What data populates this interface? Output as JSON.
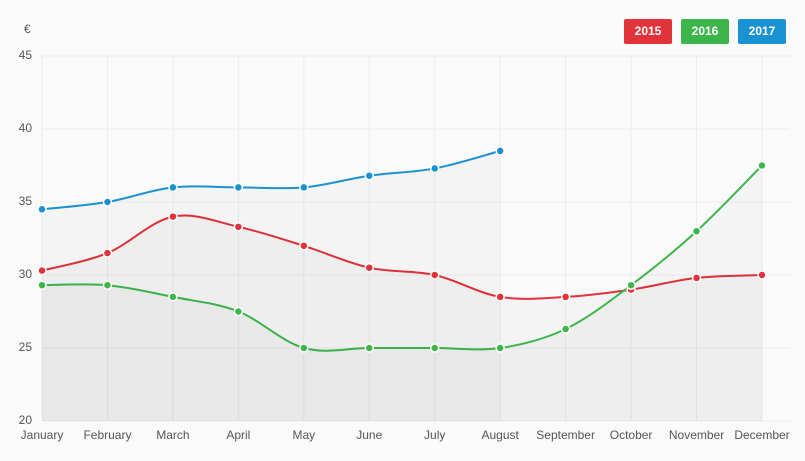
{
  "chart_data": {
    "type": "line",
    "ylabel": "€",
    "categories": [
      "January",
      "February",
      "March",
      "April",
      "May",
      "June",
      "July",
      "August",
      "September",
      "October",
      "November",
      "December"
    ],
    "series": [
      {
        "name": "2015",
        "color": "#e2323a",
        "values": [
          30.3,
          31.5,
          34,
          33.3,
          32,
          30.5,
          30,
          28.5,
          28.5,
          29,
          29.8,
          30
        ]
      },
      {
        "name": "2016",
        "color": "#3db54a",
        "values": [
          29.3,
          29.3,
          28.5,
          27.5,
          25,
          25,
          25,
          25,
          26.3,
          29.3,
          33,
          37.5
        ]
      },
      {
        "name": "2017",
        "color": "#1a91d1",
        "values": [
          34.5,
          35,
          36,
          36,
          36,
          36.8,
          37.3,
          38.5,
          null,
          null,
          null,
          null
        ]
      }
    ],
    "ylim": [
      20,
      45
    ],
    "yticks": [
      20,
      25,
      30,
      35,
      40,
      45
    ],
    "grid": true,
    "legend": "top-right"
  }
}
